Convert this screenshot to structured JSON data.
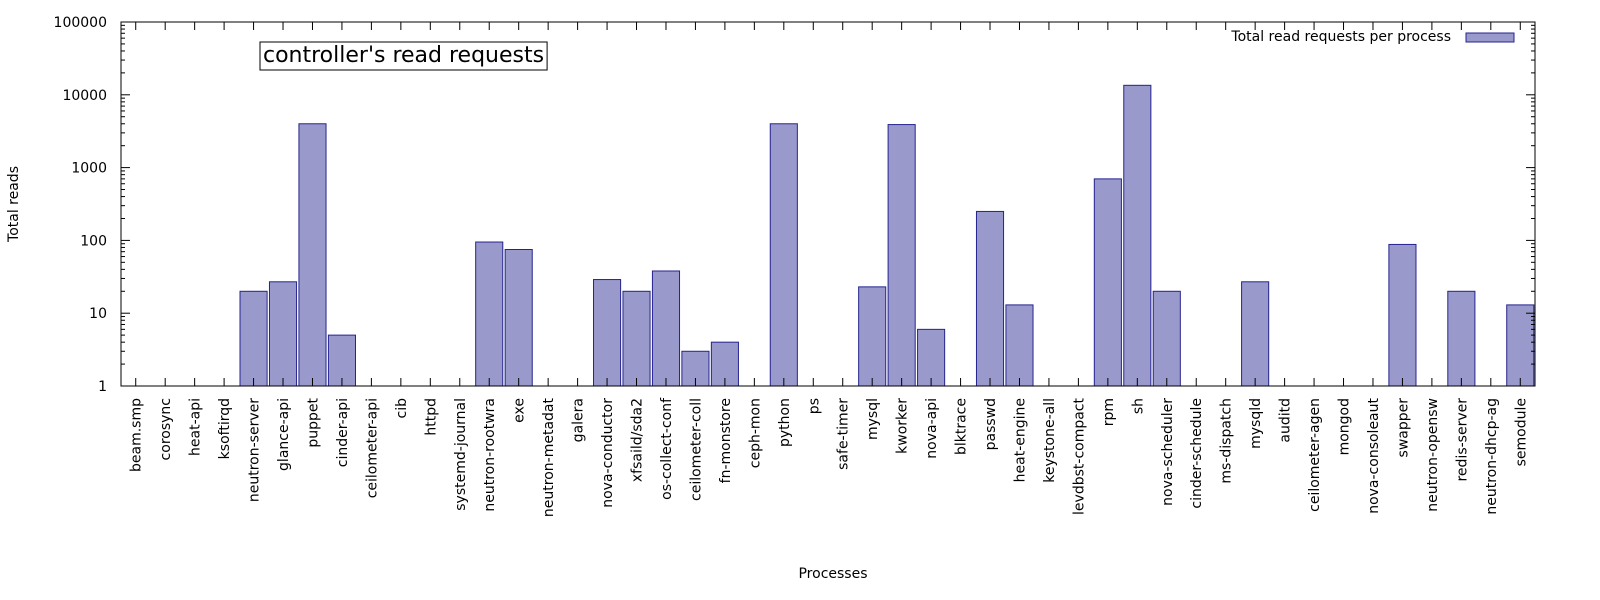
{
  "chart_data": {
    "type": "bar",
    "title": "controller's read requests",
    "xlabel": "Processes",
    "ylabel": "Total reads",
    "yscale": "log",
    "ylim": [
      1,
      100000
    ],
    "yticks": [
      "1",
      "10",
      "100",
      "1000",
      "10000",
      "100000"
    ],
    "grid": false,
    "legend_position": "top-right",
    "bar_color": "#9999cc",
    "bar_edge_color": "#24248f",
    "categories": [
      "beam.smp",
      "corosync",
      "heat-api",
      "ksoftirqd",
      "neutron-server",
      "glance-api",
      "puppet",
      "cinder-api",
      "ceilometer-api",
      "cib",
      "httpd",
      "systemd-journal",
      "neutron-rootwra",
      "exe",
      "neutron-metadat",
      "galera",
      "nova-conductor",
      "xfsaild/sda2",
      "os-collect-conf",
      "ceilometer-coll",
      "fn-monstore",
      "ceph-mon",
      "python",
      "ps",
      "safe-timer",
      "mysql",
      "kworker",
      "nova-api",
      "blktrace",
      "passwd",
      "heat-engine",
      "keystone-all",
      "levdbst-compact",
      "rpm",
      "sh",
      "nova-scheduler",
      "cinder-schedule",
      "ms-dispatch",
      "mysqld",
      "auditd",
      "ceilometer-agen",
      "mongod",
      "nova-consoleaut",
      "swapper",
      "neutron-opensw",
      "redis-server",
      "neutron-dhcp-ag",
      "semodule"
    ],
    "series": [
      {
        "name": "Total read requests per process",
        "values": [
          1,
          1,
          1,
          1,
          20,
          27,
          4000,
          5,
          1,
          1,
          1,
          1,
          95,
          75,
          1,
          1,
          29,
          20,
          38,
          3,
          4,
          1,
          4000,
          1,
          1,
          23,
          3900,
          6,
          1,
          250,
          13,
          1,
          1,
          700,
          13500,
          20,
          1,
          1,
          27,
          1,
          1,
          1,
          1,
          88,
          1,
          20,
          1,
          13
        ]
      }
    ]
  }
}
